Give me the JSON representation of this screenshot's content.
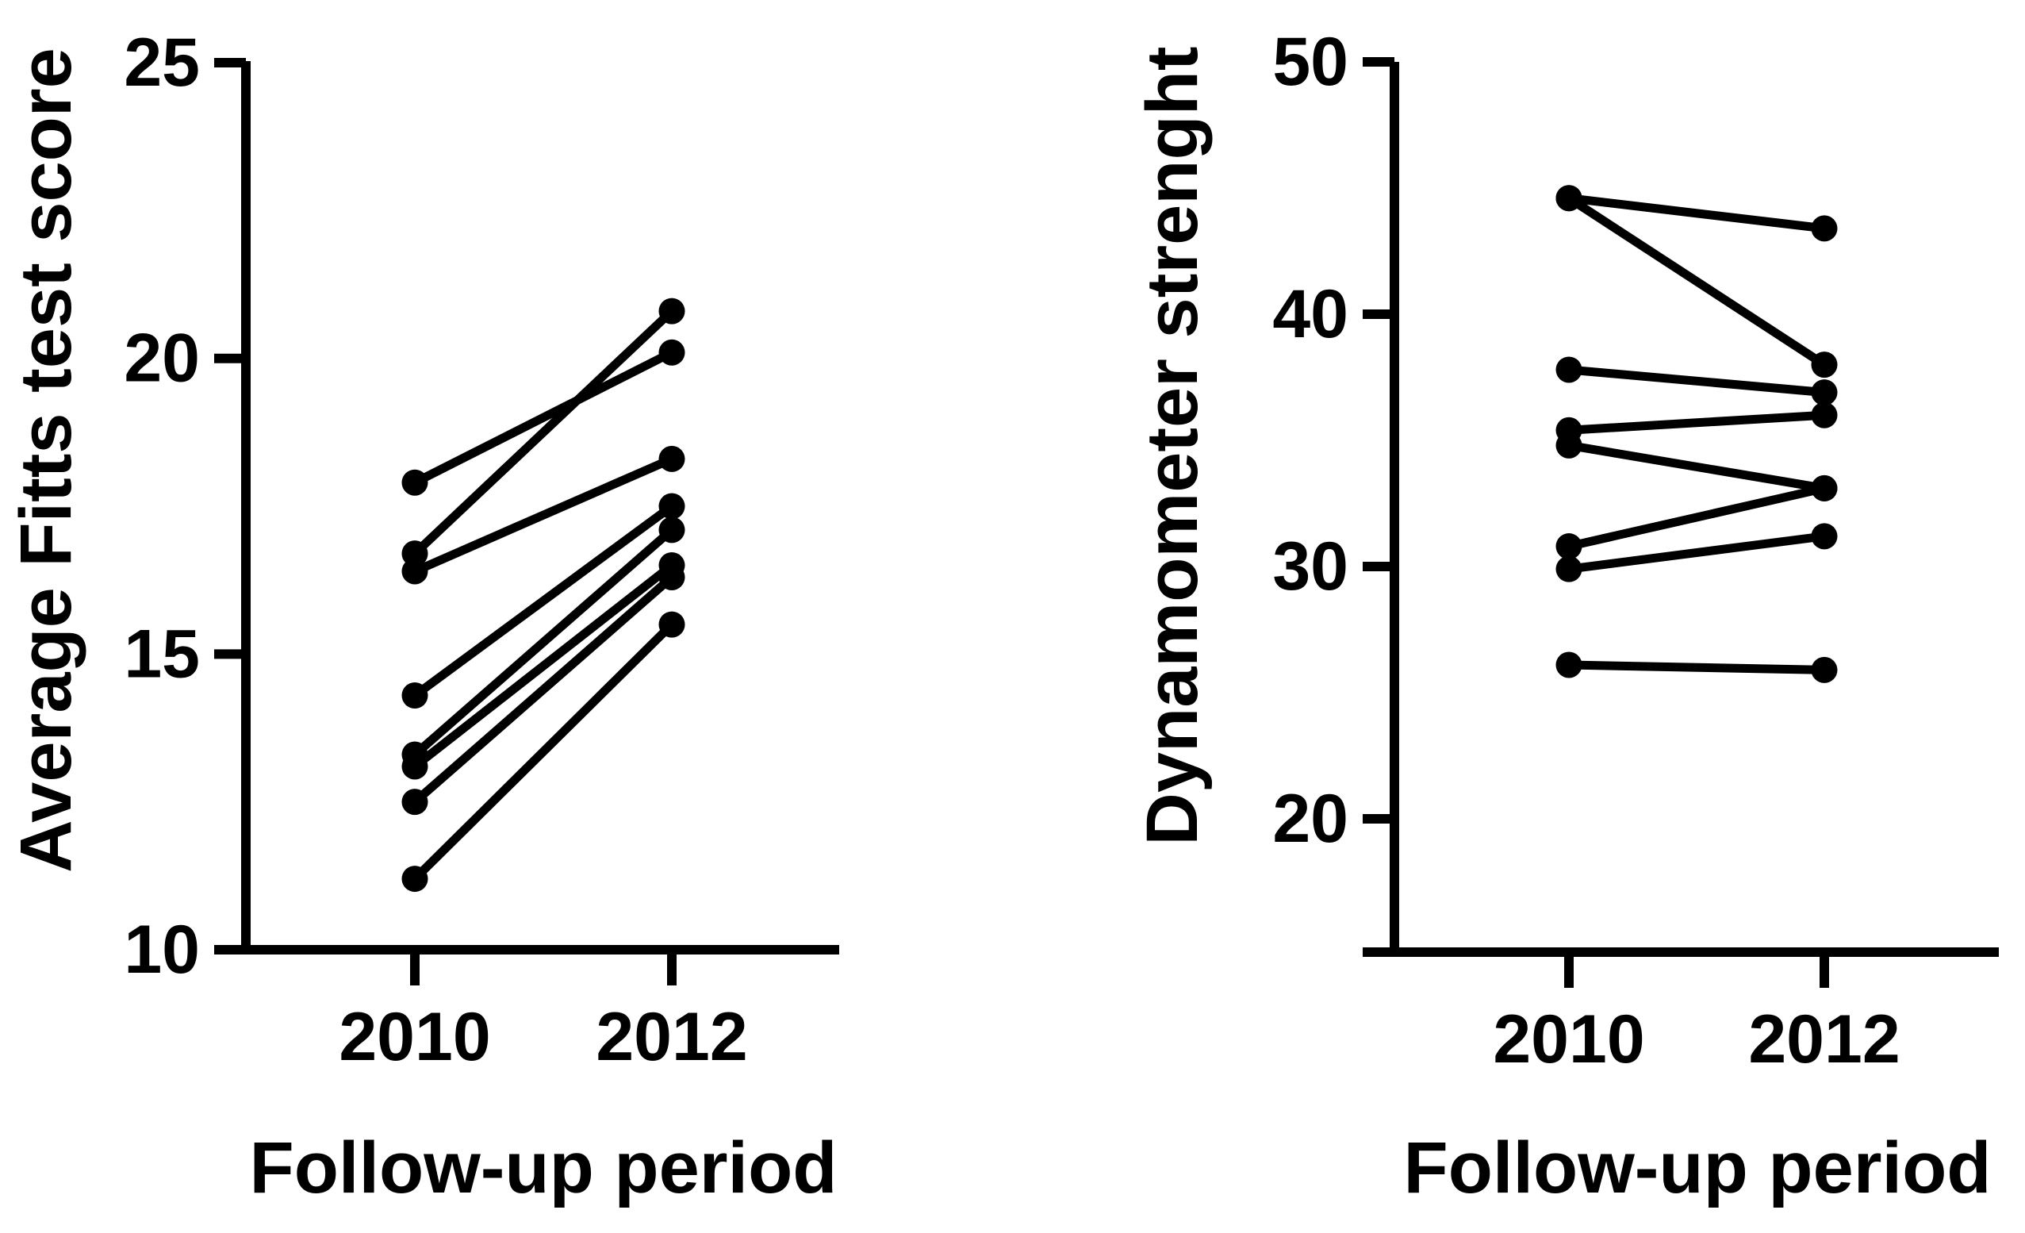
{
  "page": {
    "background": "#ffffff",
    "ink_color": "#000000"
  },
  "chart_data": [
    {
      "type": "line",
      "subtype": "paired-before-after-plot",
      "title": "",
      "xlabel": "Follow-up period",
      "ylabel": "Average Fitts test score",
      "categories": [
        "2010",
        "2012"
      ],
      "yticks": [
        10,
        15,
        20,
        25
      ],
      "ylim": [
        10,
        25
      ],
      "grid": false,
      "legend": "none",
      "marker": "filled-circle",
      "line_color": "#000000",
      "series": [
        [
          17.9,
          20.1
        ],
        [
          16.7,
          20.8
        ],
        [
          16.4,
          18.3
        ],
        [
          14.3,
          17.5
        ],
        [
          13.3,
          17.1
        ],
        [
          13.1,
          16.5
        ],
        [
          12.5,
          16.3
        ],
        [
          11.2,
          15.5
        ]
      ]
    },
    {
      "type": "line",
      "subtype": "paired-before-after-plot",
      "title": "",
      "xlabel": "Follow-up period",
      "ylabel": "Dynamometer strenght",
      "categories": [
        "2010",
        "2012"
      ],
      "yticks": [
        20,
        30,
        40,
        50
      ],
      "ylim": [
        20,
        50
      ],
      "grid": false,
      "legend": "none",
      "marker": "filled-circle",
      "line_color": "#000000",
      "series": [
        [
          44.6,
          43.4
        ],
        [
          44.6,
          38.0
        ],
        [
          37.8,
          36.9
        ],
        [
          35.4,
          36.0
        ],
        [
          34.8,
          33.1
        ],
        [
          30.8,
          33.1
        ],
        [
          29.9,
          31.2
        ],
        [
          26.1,
          25.9
        ]
      ]
    }
  ]
}
